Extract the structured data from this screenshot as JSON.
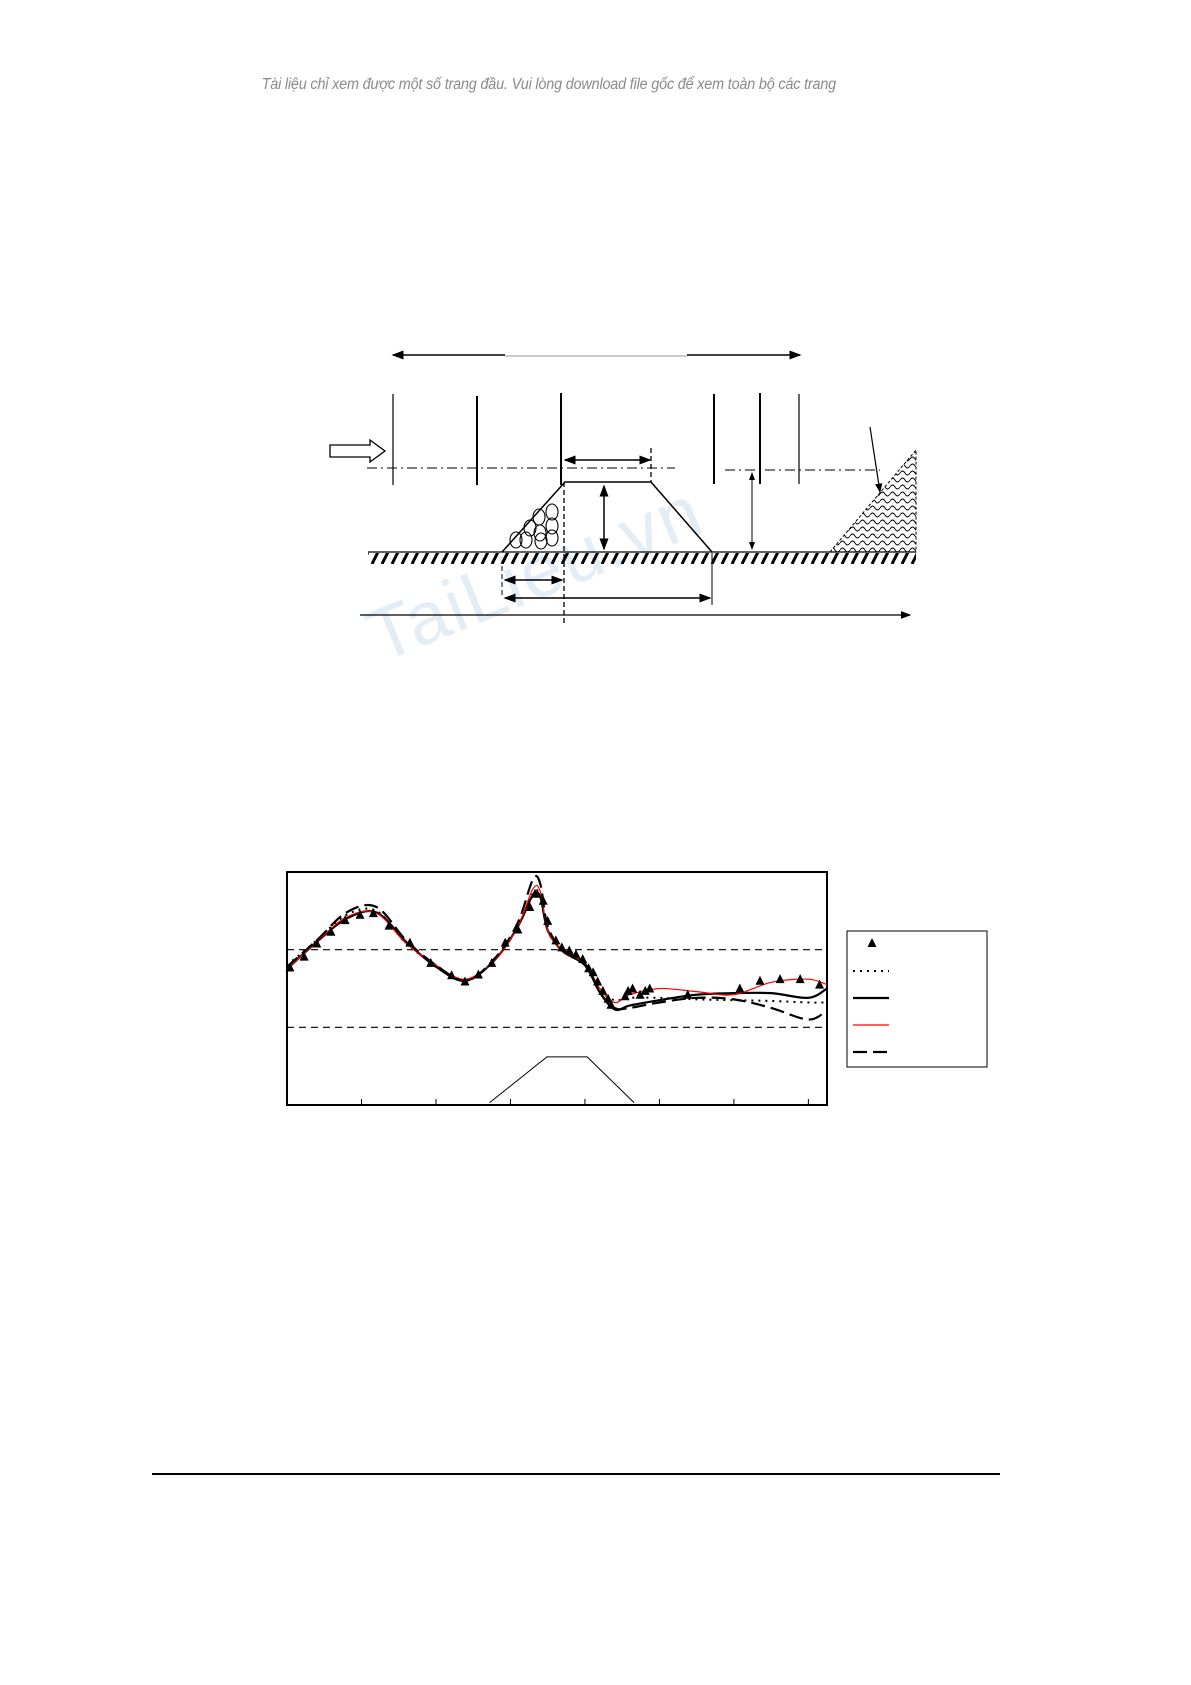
{
  "header": {
    "notice": "Tài liệu chỉ xem được một số trang đầu. Vui lòng download file gốc để xem toàn bộ các trang"
  },
  "watermark": {
    "text": "TaiLieu.vn",
    "color": "#dbe9f4"
  },
  "chart_data": {
    "type": "line",
    "title": "",
    "xlabel": "",
    "ylabel": "",
    "xlim": [
      0,
      7.25
    ],
    "ylim": [
      0,
      3
    ],
    "x_ticks": [
      1,
      2,
      3,
      4,
      5,
      6,
      7
    ],
    "reference_lines_y": [
      1,
      2
    ],
    "grid": false,
    "legend": "right",
    "markers": {
      "style": "triangle",
      "color": "#000000",
      "x": [
        0.04,
        0.23,
        0.4,
        0.59,
        0.78,
        0.98,
        1.16,
        1.37,
        1.65,
        1.93,
        2.21,
        2.39,
        2.57,
        2.75,
        2.93,
        3.1,
        3.26,
        3.33,
        3.44,
        3.5,
        3.61,
        3.69,
        3.79,
        3.88,
        3.97,
        4.05,
        4.11,
        4.17,
        4.24,
        4.31,
        4.35,
        4.54,
        4.58,
        4.64,
        4.74,
        4.81,
        4.87,
        5.38,
        6.08,
        6.35,
        6.62,
        6.89,
        7.15
      ],
      "y": [
        1.77,
        1.91,
        2.08,
        2.23,
        2.38,
        2.45,
        2.47,
        2.31,
        2.09,
        1.83,
        1.67,
        1.59,
        1.68,
        1.83,
        2.09,
        2.26,
        2.55,
        2.72,
        2.63,
        2.37,
        2.12,
        2.03,
        1.99,
        1.94,
        1.88,
        1.76,
        1.71,
        1.59,
        1.47,
        1.37,
        1.29,
        1.4,
        1.47,
        1.5,
        1.42,
        1.47,
        1.5,
        1.42,
        1.5,
        1.6,
        1.62,
        1.62,
        1.55
      ]
    },
    "x": [
      0,
      0.4,
      0.8,
      1.2,
      1.6,
      2.0,
      2.4,
      2.8,
      3.1,
      3.3,
      3.4,
      3.5,
      3.7,
      4.0,
      4.2,
      4.4,
      4.6,
      5.0,
      5.5,
      6.0,
      6.5,
      7.0,
      7.25
    ],
    "series": [
      {
        "style": "dotted",
        "color": "#000000",
        "values": [
          1.8,
          2.12,
          2.45,
          2.5,
          2.08,
          1.8,
          1.6,
          1.88,
          2.3,
          2.72,
          2.7,
          2.25,
          1.98,
          1.82,
          1.48,
          1.35,
          1.38,
          1.38,
          1.36,
          1.35,
          1.34,
          1.32,
          1.32
        ]
      },
      {
        "style": "solid",
        "color": "#000000",
        "values": [
          1.75,
          2.1,
          2.4,
          2.48,
          2.1,
          1.78,
          1.6,
          1.88,
          2.3,
          2.7,
          2.68,
          2.25,
          1.98,
          1.8,
          1.45,
          1.23,
          1.28,
          1.35,
          1.42,
          1.44,
          1.44,
          1.38,
          1.5
        ]
      },
      {
        "style": "solid-thin",
        "color": "#ff0000",
        "values": [
          1.75,
          2.1,
          2.42,
          2.47,
          2.08,
          1.8,
          1.62,
          1.88,
          2.3,
          2.78,
          2.75,
          2.25,
          1.98,
          1.82,
          1.5,
          1.32,
          1.42,
          1.5,
          1.46,
          1.42,
          1.58,
          1.62,
          1.55
        ]
      },
      {
        "style": "long-dash",
        "color": "#000000",
        "values": [
          1.78,
          2.12,
          2.48,
          2.55,
          2.12,
          1.8,
          1.6,
          1.9,
          2.35,
          2.9,
          2.85,
          2.3,
          2.0,
          1.82,
          1.45,
          1.25,
          1.25,
          1.32,
          1.38,
          1.36,
          1.25,
          1.1,
          1.22
        ]
      }
    ],
    "structure_outline": {
      "x": [
        2.72,
        3.49,
        4.03,
        4.66
      ],
      "y": [
        0.03,
        0.62,
        0.62,
        0.03
      ]
    }
  }
}
